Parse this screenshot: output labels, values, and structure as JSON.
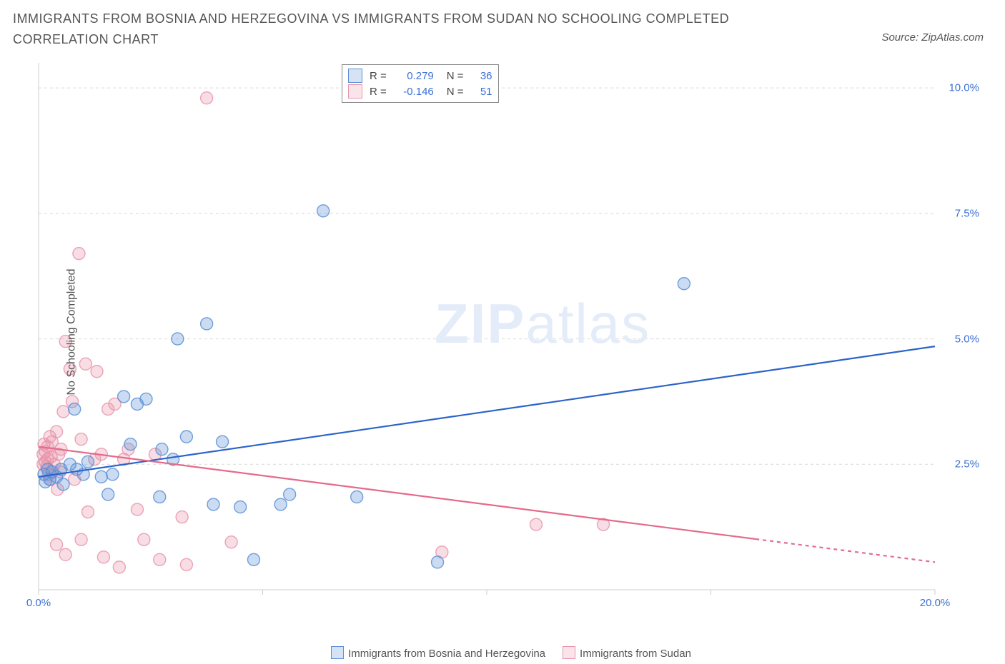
{
  "title": "IMMIGRANTS FROM BOSNIA AND HERZEGOVINA VS IMMIGRANTS FROM SUDAN NO SCHOOLING COMPLETED CORRELATION CHART",
  "source": "Source: ZipAtlas.com",
  "watermark_zip": "ZIP",
  "watermark_atlas": "atlas",
  "chart": {
    "type": "scatter",
    "background_color": "#ffffff",
    "grid_color": "#d9d9d9",
    "axis_line_color": "#cccccc",
    "tick_color": "#cccccc",
    "tick_label_color": "#3b6fd6",
    "ylabel": "No Schooling Completed",
    "ylabel_color": "#555555",
    "ylabel_fontsize": 16,
    "title_color": "#555555",
    "title_fontsize": 18,
    "xlim": [
      0,
      20
    ],
    "ylim": [
      0,
      10.5
    ],
    "xticks": [
      0,
      5,
      10,
      15,
      20
    ],
    "xtick_labels": [
      "0.0%",
      "",
      "",
      "",
      "20.0%"
    ],
    "yticks": [
      2.5,
      5.0,
      7.5,
      10.0
    ],
    "ytick_labels": [
      "2.5%",
      "5.0%",
      "7.5%",
      "10.0%"
    ],
    "marker_radius": 8.5,
    "marker_fill_opacity": 0.32,
    "marker_stroke_opacity": 0.85,
    "marker_stroke_width": 1.4,
    "line_width": 2.2,
    "series": [
      {
        "name": "Immigrants from Bosnia and Herzegovina",
        "color": "#5b8fd6",
        "line_color": "#2b63c9",
        "R": "0.279",
        "N": "36",
        "trend": {
          "x1": 0,
          "y1": 2.25,
          "x2": 20,
          "y2": 4.85,
          "solid_until_x": 20
        },
        "points": [
          [
            0.12,
            2.3
          ],
          [
            0.15,
            2.15
          ],
          [
            0.2,
            2.4
          ],
          [
            0.25,
            2.2
          ],
          [
            0.3,
            2.35
          ],
          [
            0.4,
            2.25
          ],
          [
            0.5,
            2.4
          ],
          [
            0.55,
            2.1
          ],
          [
            0.7,
            2.5
          ],
          [
            0.8,
            3.6
          ],
          [
            0.85,
            2.4
          ],
          [
            1.0,
            2.3
          ],
          [
            1.1,
            2.55
          ],
          [
            1.4,
            2.25
          ],
          [
            1.55,
            1.9
          ],
          [
            1.65,
            2.3
          ],
          [
            1.9,
            3.85
          ],
          [
            2.05,
            2.9
          ],
          [
            2.2,
            3.7
          ],
          [
            2.4,
            3.8
          ],
          [
            2.7,
            1.85
          ],
          [
            2.75,
            2.8
          ],
          [
            3.0,
            2.6
          ],
          [
            3.1,
            5.0
          ],
          [
            3.3,
            3.05
          ],
          [
            3.75,
            5.3
          ],
          [
            3.9,
            1.7
          ],
          [
            4.1,
            2.95
          ],
          [
            4.5,
            1.65
          ],
          [
            4.8,
            0.6
          ],
          [
            5.4,
            1.7
          ],
          [
            5.6,
            1.9
          ],
          [
            6.35,
            7.55
          ],
          [
            7.1,
            1.85
          ],
          [
            8.9,
            0.55
          ],
          [
            14.4,
            6.1
          ]
        ]
      },
      {
        "name": "Immigrants from Sudan",
        "color": "#e895ab",
        "line_color": "#e56a8c",
        "R": "-0.146",
        "N": "51",
        "trend": {
          "x1": 0,
          "y1": 2.85,
          "x2": 20,
          "y2": 0.55,
          "solid_until_x": 16
        },
        "points": [
          [
            0.1,
            2.7
          ],
          [
            0.1,
            2.5
          ],
          [
            0.12,
            2.9
          ],
          [
            0.15,
            2.55
          ],
          [
            0.15,
            2.75
          ],
          [
            0.18,
            2.45
          ],
          [
            0.2,
            2.85
          ],
          [
            0.2,
            2.6
          ],
          [
            0.22,
            2.3
          ],
          [
            0.25,
            3.05
          ],
          [
            0.25,
            2.2
          ],
          [
            0.28,
            2.65
          ],
          [
            0.3,
            2.95
          ],
          [
            0.35,
            2.5
          ],
          [
            0.4,
            3.15
          ],
          [
            0.4,
            0.9
          ],
          [
            0.42,
            2.0
          ],
          [
            0.45,
            2.7
          ],
          [
            0.48,
            2.35
          ],
          [
            0.5,
            2.8
          ],
          [
            0.55,
            3.55
          ],
          [
            0.6,
            0.7
          ],
          [
            0.6,
            4.95
          ],
          [
            0.7,
            4.4
          ],
          [
            0.75,
            3.75
          ],
          [
            0.8,
            2.2
          ],
          [
            0.9,
            6.7
          ],
          [
            0.95,
            3.0
          ],
          [
            0.95,
            1.0
          ],
          [
            1.05,
            4.5
          ],
          [
            1.1,
            1.55
          ],
          [
            1.25,
            2.6
          ],
          [
            1.3,
            4.35
          ],
          [
            1.4,
            2.7
          ],
          [
            1.45,
            0.65
          ],
          [
            1.55,
            3.6
          ],
          [
            1.7,
            3.7
          ],
          [
            1.8,
            0.45
          ],
          [
            1.9,
            2.6
          ],
          [
            2.0,
            2.8
          ],
          [
            2.2,
            1.6
          ],
          [
            2.35,
            1.0
          ],
          [
            2.6,
            2.7
          ],
          [
            2.7,
            0.6
          ],
          [
            3.2,
            1.45
          ],
          [
            3.3,
            0.5
          ],
          [
            3.75,
            9.8
          ],
          [
            4.3,
            0.95
          ],
          [
            9.0,
            0.75
          ],
          [
            11.1,
            1.3
          ],
          [
            12.6,
            1.3
          ]
        ]
      }
    ],
    "stat_legend": {
      "labels": {
        "R": "R =",
        "N": "N ="
      }
    },
    "bottom_legend": {
      "swatch_size": 16
    }
  }
}
